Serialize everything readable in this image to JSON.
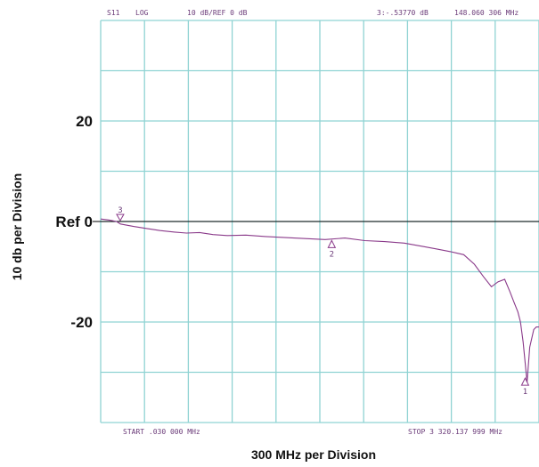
{
  "header": {
    "param": "S11",
    "format": "LOG",
    "scale": "10 dB/REF 0 dB",
    "marker_readout": "3:-.53770 dB",
    "marker_freq": "148.060 306 MHz"
  },
  "footer": {
    "start": "START  .030 000 MHz",
    "stop": "STOP 3 320.137 999 MHz"
  },
  "colors": {
    "grid": "#8fd3d3",
    "trace": "#8a3a8a",
    "text": "#6a3a78",
    "reference_line": "#000000"
  },
  "chart_data": {
    "type": "line",
    "xlabel": "300 MHz per Division",
    "ylabel": "10 db per Division",
    "xlim": [
      0.03,
      3320.137999
    ],
    "ylim": [
      -40,
      40
    ],
    "y_scale_db_per_div": 10,
    "x_divisions": 10,
    "y_divisions": 8,
    "grid": true,
    "ytick_labels": [
      {
        "value": 20,
        "label": "20"
      },
      {
        "value": 0,
        "label": "Ref 0"
      },
      {
        "value": -20,
        "label": "-20"
      }
    ],
    "series": [
      {
        "x": [
          0.03,
          60,
          120,
          150,
          250,
          350,
          450,
          560,
          650,
          750,
          850,
          960,
          1100,
          1250,
          1400,
          1550,
          1700,
          1850,
          2000,
          2150,
          2300,
          2450,
          2550,
          2650,
          2750,
          2830,
          2900,
          2960,
          3010,
          3060,
          3100,
          3130,
          3160,
          3180,
          3200,
          3215,
          3230,
          3250,
          3280,
          3300,
          3320.14
        ],
        "y": [
          0.5,
          0.3,
          0.0,
          -0.5,
          -1.0,
          -1.4,
          -1.8,
          -2.1,
          -2.3,
          -2.2,
          -2.6,
          -2.8,
          -2.7,
          -3.0,
          -3.2,
          -3.4,
          -3.6,
          -3.3,
          -3.8,
          -4.0,
          -4.3,
          -5.0,
          -5.5,
          -6.0,
          -6.6,
          -8.5,
          -11.0,
          -13.0,
          -12.0,
          -11.5,
          -14.0,
          -16.0,
          -18.0,
          -20.0,
          -24.0,
          -28.0,
          -32.0,
          -25.0,
          -21.5,
          -21.0,
          -21.0
        ]
      }
    ],
    "markers": [
      {
        "label": "3",
        "x": 148.06,
        "y": -0.5377
      },
      {
        "label": "2",
        "x": 1750,
        "y": -3.6
      },
      {
        "label": "1",
        "x": 3215,
        "y": -31
      }
    ]
  }
}
